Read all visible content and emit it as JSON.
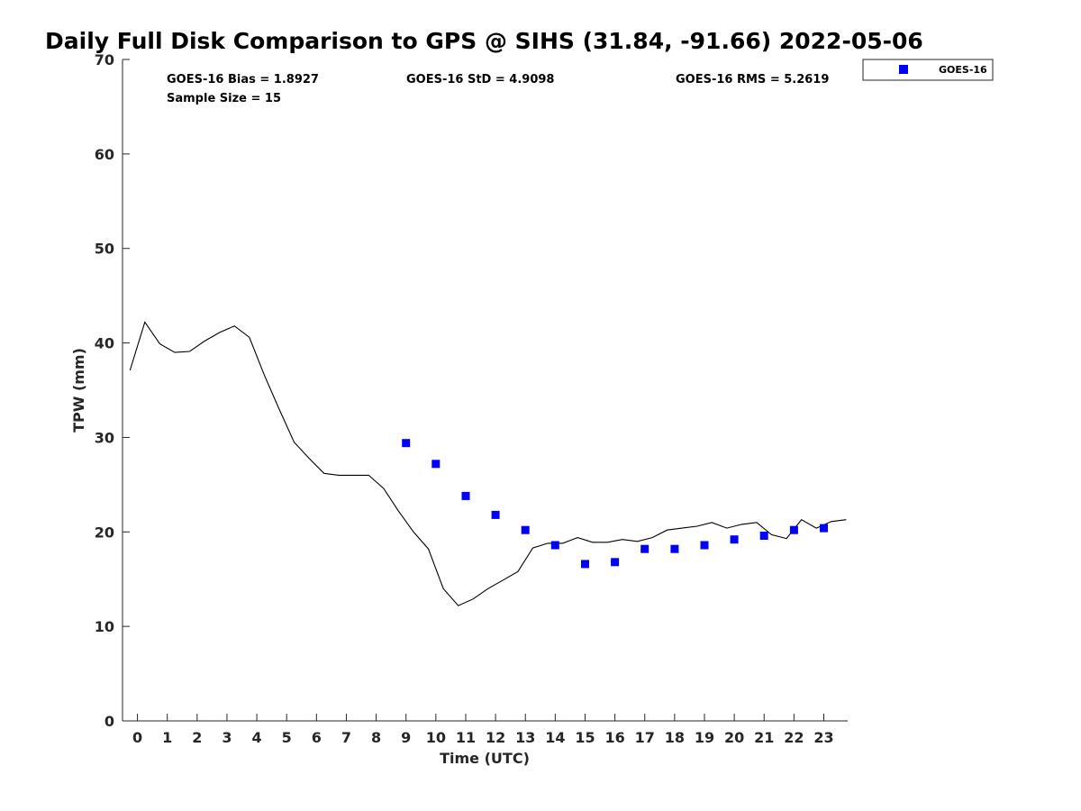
{
  "chart_data": {
    "type": "scatter",
    "title": "Daily Full Disk Comparison to GPS @ SIHS (31.84, -91.66) 2022-05-06",
    "xlabel": "Time (UTC)",
    "ylabel": "TPW (mm)",
    "xlim": [
      -0.5,
      23.8
    ],
    "ylim": [
      0,
      70
    ],
    "x_ticks": [
      0,
      1,
      2,
      3,
      4,
      5,
      6,
      7,
      8,
      9,
      10,
      11,
      12,
      13,
      14,
      15,
      16,
      17,
      18,
      19,
      20,
      21,
      22,
      23
    ],
    "y_ticks": [
      0,
      10,
      20,
      30,
      40,
      50,
      60,
      70
    ],
    "grid": false,
    "legend_position": "top-right",
    "stats": {
      "bias": "GOES-16 Bias = 1.8927",
      "std": "GOES-16 StD = 4.9098",
      "rms": "GOES-16 RMS = 5.2619",
      "sample_size": "Sample Size = 15"
    },
    "series": [
      {
        "name": "GOES-16",
        "kind": "scatter",
        "marker": "square",
        "color": "#0000ff",
        "x": [
          9,
          10,
          11,
          12,
          13,
          14,
          15,
          16,
          17,
          18,
          19,
          20,
          21,
          22,
          23
        ],
        "y": [
          29.4,
          27.2,
          23.8,
          21.8,
          20.2,
          18.6,
          16.6,
          16.8,
          18.2,
          18.2,
          18.6,
          19.2,
          19.6,
          20.2,
          20.4
        ]
      },
      {
        "name": "",
        "kind": "line",
        "color": "#000000",
        "x": [
          -0.25,
          0.25,
          0.75,
          1.25,
          1.75,
          2.25,
          2.75,
          3.25,
          3.75,
          4.25,
          4.75,
          5.25,
          5.75,
          6.25,
          6.75,
          7.25,
          7.75,
          8.25,
          8.75,
          9.25,
          9.75,
          10.25,
          10.75,
          11.25,
          11.75,
          12.25,
          12.75,
          13.25,
          13.75,
          14.25,
          14.75,
          15.25,
          15.75,
          16.25,
          16.75,
          17.25,
          17.75,
          18.25,
          18.75,
          19.25,
          19.75,
          20.25,
          20.75,
          21.25,
          21.75,
          22.25,
          22.75,
          23.25,
          23.75
        ],
        "y": [
          37.1,
          42.2,
          39.9,
          39.0,
          39.1,
          40.2,
          41.1,
          41.8,
          40.6,
          36.6,
          33.0,
          29.5,
          27.8,
          26.2,
          26.0,
          26.0,
          26.0,
          24.6,
          22.2,
          20.0,
          18.2,
          14.0,
          12.2,
          12.9,
          14.0,
          14.9,
          15.8,
          18.3,
          18.8,
          18.8,
          19.4,
          18.9,
          18.9,
          19.2,
          19.0,
          19.4,
          20.2,
          20.4,
          20.6,
          21.0,
          20.4,
          20.8,
          21.0,
          19.7,
          19.3,
          21.3,
          20.4,
          21.1,
          21.3
        ]
      }
    ]
  }
}
